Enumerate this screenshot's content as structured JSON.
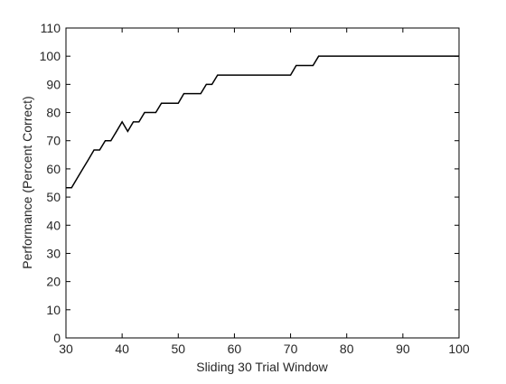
{
  "chart_data": {
    "type": "line",
    "title": "",
    "xlabel": "Sliding 30 Trial Window",
    "ylabel": "Performance (Percent Correct)",
    "xlim": [
      30,
      100
    ],
    "ylim": [
      0,
      110
    ],
    "xticks": [
      30,
      40,
      50,
      60,
      70,
      80,
      90,
      100
    ],
    "yticks": [
      0,
      10,
      20,
      30,
      40,
      50,
      60,
      70,
      80,
      90,
      100,
      110
    ],
    "grid": false,
    "legend": "none",
    "line_color": "#000000",
    "series": [
      {
        "x": [
          30,
          31,
          32,
          33,
          34,
          35,
          36,
          37,
          38,
          39,
          40,
          41,
          42,
          43,
          44,
          45,
          46,
          47,
          48,
          49,
          50,
          51,
          52,
          53,
          54,
          55,
          56,
          57,
          58,
          59,
          60,
          61,
          62,
          63,
          64,
          65,
          66,
          67,
          68,
          69,
          70,
          71,
          72,
          73,
          74,
          75,
          76,
          77,
          78,
          79,
          80,
          81,
          82,
          83,
          84,
          85,
          86,
          87,
          88,
          89,
          90,
          91,
          92,
          93,
          94,
          95,
          96,
          97,
          98,
          99,
          100
        ],
        "values": [
          53.3,
          53.3,
          56.7,
          60,
          63.3,
          66.7,
          66.7,
          70,
          70,
          73.3,
          76.7,
          73.3,
          76.7,
          76.7,
          80,
          80,
          80,
          83.3,
          83.3,
          83.3,
          83.3,
          86.7,
          86.7,
          86.7,
          86.7,
          90,
          90,
          93.3,
          93.3,
          93.3,
          93.3,
          93.3,
          93.3,
          93.3,
          93.3,
          93.3,
          93.3,
          93.3,
          93.3,
          93.3,
          93.3,
          96.7,
          96.7,
          96.7,
          96.7,
          100,
          100,
          100,
          100,
          100,
          100,
          100,
          100,
          100,
          100,
          100,
          100,
          100,
          100,
          100,
          100,
          100,
          100,
          100,
          100,
          100,
          100,
          100,
          100,
          100,
          100
        ]
      }
    ]
  }
}
